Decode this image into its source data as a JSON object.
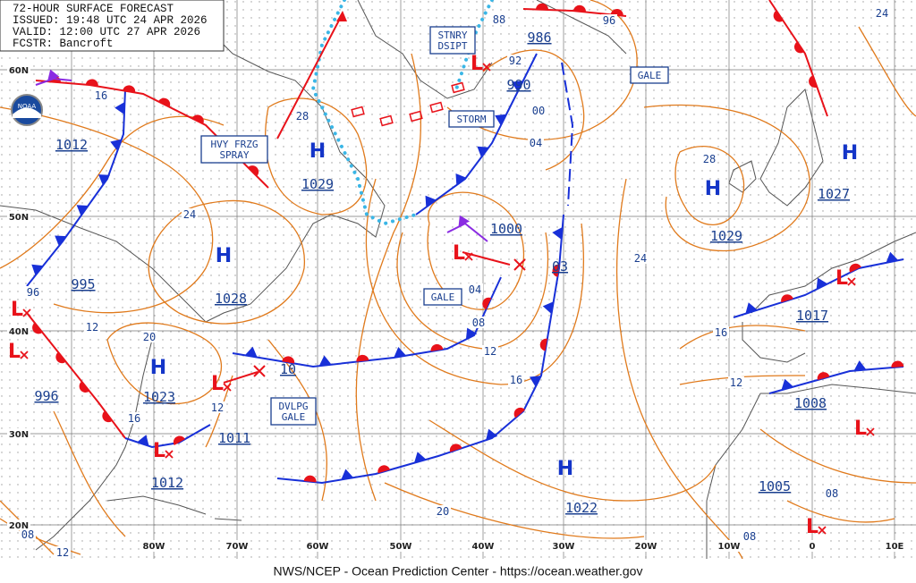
{
  "header": {
    "lines": [
      "72-HOUR SURFACE FORECAST",
      "ISSUED: 19:48 UTC 24 APR 2026",
      "VALID: 12:00 UTC 27 APR 2026",
      "FCSTR: Bancroft"
    ]
  },
  "footer": "NWS/NCEP - Ocean Prediction Center - https://ocean.weather.gov",
  "grid": {
    "lat_labels": [
      "60N",
      "50N",
      "40N",
      "30N",
      "20N"
    ],
    "lon_labels": [
      "80W",
      "70W",
      "60W",
      "50W",
      "40W",
      "30W",
      "20W",
      "10W",
      "0",
      "10E"
    ]
  },
  "highs": [
    {
      "symbol": "H",
      "pressure": "1029"
    },
    {
      "symbol": "H",
      "pressure": "1028"
    },
    {
      "symbol": "H",
      "pressure": "1023"
    },
    {
      "symbol": "H",
      "pressure": "1022"
    },
    {
      "symbol": "H",
      "pressure": "1029"
    },
    {
      "symbol": "H",
      "pressure": "1027"
    }
  ],
  "low_symbols": [
    "L",
    "L",
    "L",
    "L",
    "L",
    "L",
    "L",
    "L",
    "L"
  ],
  "low_pressures": [
    "1012",
    "995",
    "996",
    "1012",
    "1011",
    "10",
    "1000",
    "990",
    "986",
    "03",
    "1017",
    "1008",
    "1005"
  ],
  "boxes": [
    {
      "lines": [
        "HVY FRZG",
        "SPRAY"
      ]
    },
    {
      "lines": [
        "STORM"
      ]
    },
    {
      "lines": [
        "GALE"
      ]
    },
    {
      "lines": [
        "GALE"
      ]
    },
    {
      "lines": [
        "DVLPG",
        "GALE"
      ]
    },
    {
      "lines": [
        "STNRY",
        "DSIPT"
      ]
    }
  ],
  "isobar_labels": [
    "16",
    "24",
    "28",
    "96",
    "12",
    "20",
    "16",
    "12",
    "04",
    "08",
    "12",
    "16",
    "20",
    "24",
    "28",
    "16",
    "12",
    "08",
    "08",
    "08",
    "12",
    "00",
    "04",
    "92",
    "88",
    "96",
    "24"
  ]
}
